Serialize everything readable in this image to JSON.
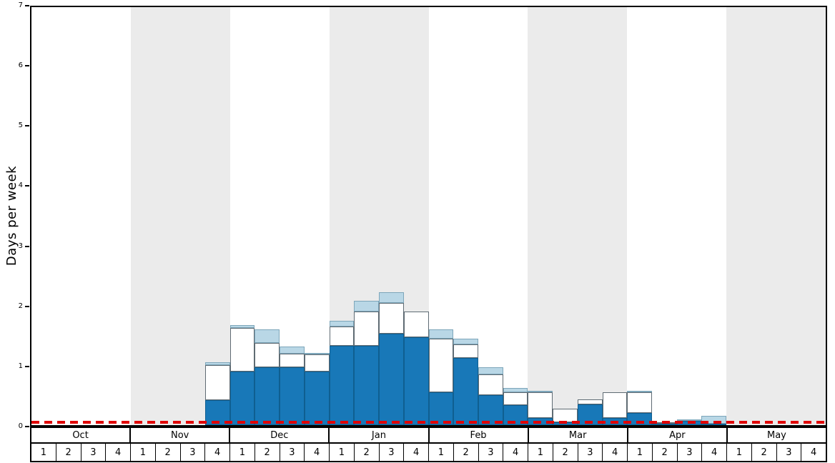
{
  "chart_data": {
    "type": "bar",
    "stacked": true,
    "title": "",
    "ylabel": "Days per week",
    "xlabel": "",
    "ylim": [
      0,
      7
    ],
    "yticks": [
      "0",
      "1",
      "2",
      "3",
      "4",
      "5",
      "6",
      "7"
    ],
    "grid": false,
    "legend": "none",
    "months": [
      "Oct",
      "Nov",
      "Dec",
      "Jan",
      "Feb",
      "Mar",
      "Apr",
      "May"
    ],
    "week_labels": [
      "1",
      "2",
      "3",
      "4"
    ],
    "band_color": "#ebebeb",
    "series": [
      {
        "name": "dark-blue",
        "color": "#1878b8",
        "border_color": "#0f5f91",
        "values": [
          0,
          0,
          0,
          0,
          0,
          0,
          0,
          0.42,
          0.9,
          0.97,
          0.97,
          0.9,
          1.33,
          1.33,
          1.53,
          1.47,
          0.55,
          1.12,
          0.5,
          0.33,
          0.12,
          0.05,
          0.35,
          0.12,
          0.2,
          0.02,
          0.07,
          0.02,
          0,
          0,
          0,
          0
        ]
      },
      {
        "name": "white",
        "color": "#ffffff",
        "border_color": "#5f6b73",
        "values": [
          0,
          0,
          0,
          0,
          0,
          0,
          0,
          0.58,
          0.73,
          0.41,
          0.23,
          0.28,
          0.32,
          0.57,
          0.52,
          0.43,
          0.9,
          0.23,
          0.35,
          0.22,
          0.43,
          0.22,
          0.08,
          0.43,
          0.35,
          0.03,
          0,
          0,
          0,
          0,
          0,
          0
        ]
      },
      {
        "name": "light-blue",
        "color": "#b9d7e6",
        "border_color": "#7da6ba",
        "values": [
          0,
          0,
          0,
          0,
          0,
          0,
          0,
          0.05,
          0.05,
          0.22,
          0.12,
          0.02,
          0.1,
          0.18,
          0.18,
          0,
          0.15,
          0.1,
          0.12,
          0.07,
          0.02,
          0,
          0,
          0,
          0.02,
          0,
          0.02,
          0.13,
          0,
          0,
          0,
          0
        ]
      }
    ],
    "reference_line": {
      "y": 0.05,
      "color": "#e00000",
      "style": "dashed"
    }
  }
}
